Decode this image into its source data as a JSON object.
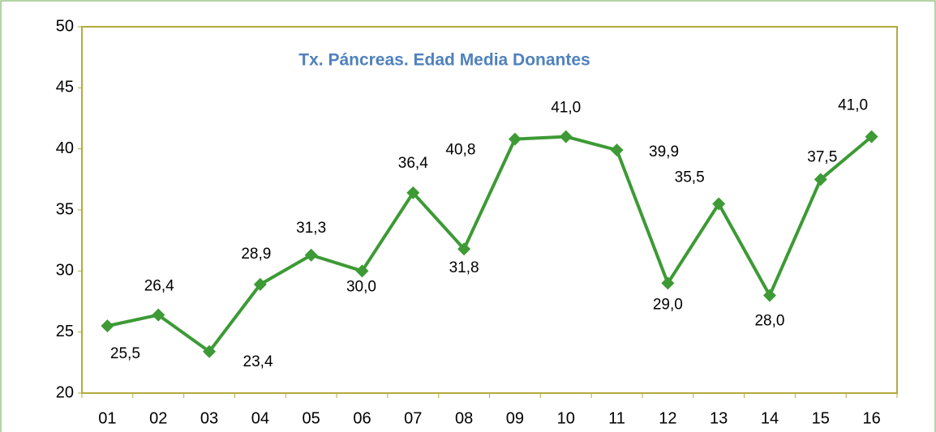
{
  "chart_data": {
    "type": "line",
    "title": "Tx. Páncreas. Edad Media Donantes",
    "categories": [
      "01",
      "02",
      "03",
      "04",
      "05",
      "06",
      "07",
      "08",
      "09",
      "10",
      "11",
      "12",
      "13",
      "14",
      "15",
      "16"
    ],
    "series": [
      {
        "color": "#3d9a35",
        "values": [
          25.5,
          26.4,
          23.4,
          28.9,
          31.3,
          30.0,
          36.4,
          31.8,
          40.8,
          41.0,
          39.9,
          29.0,
          35.5,
          28.0,
          37.5,
          41.0
        ],
        "value_labels": [
          "25,5",
          "26,4",
          "23,4",
          "28,9",
          "31,3",
          "30,0",
          "36,4",
          "31,8",
          "40,8",
          "41,0",
          "39,9",
          "29,0",
          "35,5",
          "28,0",
          "37,5",
          "41,0"
        ]
      }
    ],
    "ylim": [
      20,
      50
    ],
    "yticks": [
      20,
      25,
      30,
      35,
      40,
      45,
      50
    ],
    "grid": false
  }
}
